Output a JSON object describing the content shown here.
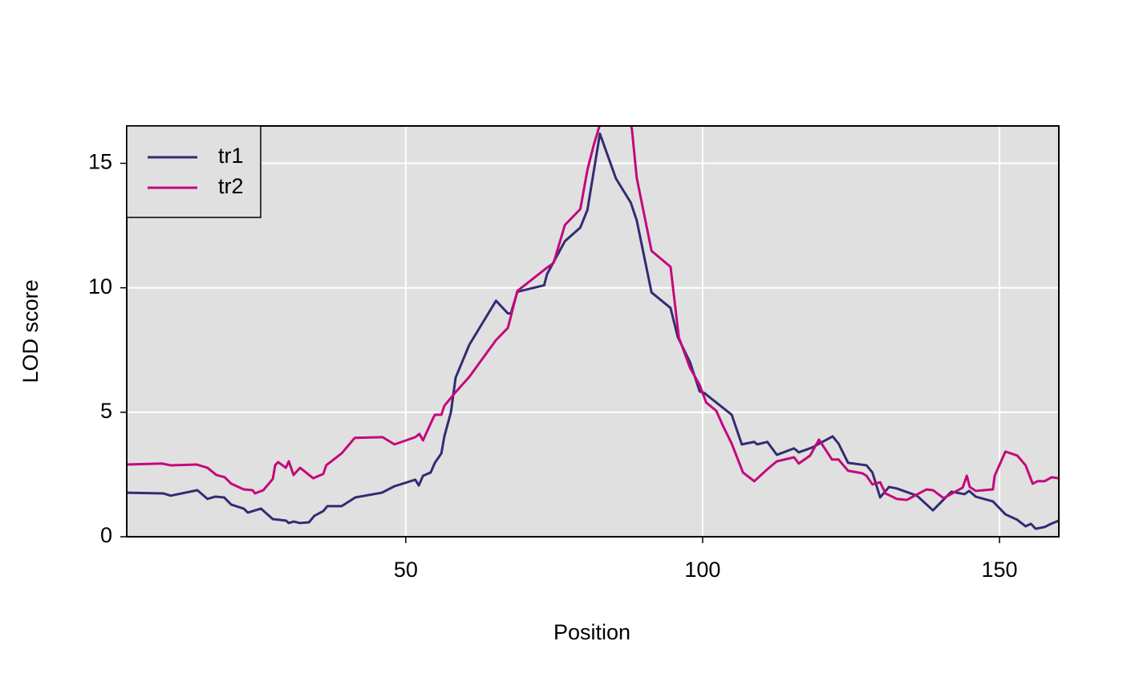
{
  "chart_data": {
    "type": "line",
    "x_label": "Position",
    "y_label": "LOD score",
    "xlim": [
      3,
      160
    ],
    "ylim": [
      0,
      16.5
    ],
    "xticks": [
      50,
      100,
      150
    ],
    "yticks": [
      0,
      5,
      10,
      15
    ],
    "grid": true,
    "legend": "top-left",
    "series": [
      {
        "name": "tr1",
        "color": "#322c73",
        "x": [
          3,
          9.2,
          10.4,
          14.9,
          16.6,
          17.9,
          19.4,
          20.6,
          22.7,
          23.4,
          25.6,
          27.6,
          29.8,
          30.3,
          31.1,
          32.2,
          33.7,
          34.6,
          36.1,
          36.8,
          39.2,
          41.5,
          46.0,
          48.1,
          51.6,
          52.2,
          52.9,
          54.2,
          54.9,
          56.0,
          56.5,
          57.6,
          58.4,
          60.7,
          65.2,
          67.2,
          67.7,
          68.8,
          73.3,
          73.8,
          76.8,
          79.4,
          80.6,
          82.7,
          85.4,
          87.9,
          88.9,
          91.4,
          94.6,
          95.8,
          97.9,
          99.5,
          100.3,
          104.9,
          106.6,
          108.7,
          109.2,
          110.9,
          112.5,
          115.4,
          116.2,
          118.4,
          121.9,
          122.9,
          124.5,
          127.6,
          128.6,
          129.9,
          131.4,
          132.7,
          136.1,
          138.8,
          141.9,
          144.1,
          144.9,
          146.0,
          148.9,
          151.0,
          153.0,
          154.4,
          155.3,
          156.1,
          157.6,
          158.7,
          160
        ],
        "values": [
          1.77,
          1.74,
          1.65,
          1.87,
          1.52,
          1.61,
          1.58,
          1.29,
          1.13,
          0.97,
          1.13,
          0.71,
          0.65,
          0.55,
          0.61,
          0.55,
          0.58,
          0.84,
          1.03,
          1.23,
          1.23,
          1.58,
          1.77,
          2.03,
          2.29,
          2.06,
          2.45,
          2.58,
          2.97,
          3.35,
          4.03,
          5.0,
          6.39,
          7.71,
          9.48,
          8.97,
          8.97,
          9.84,
          10.1,
          10.55,
          11.87,
          12.42,
          13.13,
          16.19,
          14.39,
          13.42,
          12.71,
          9.81,
          9.19,
          8.03,
          7.0,
          5.84,
          5.77,
          4.9,
          3.71,
          3.81,
          3.71,
          3.81,
          3.29,
          3.55,
          3.39,
          3.58,
          4.03,
          3.74,
          2.97,
          2.87,
          2.58,
          1.58,
          2.0,
          1.94,
          1.65,
          1.06,
          1.81,
          1.71,
          1.84,
          1.61,
          1.42,
          0.9,
          0.68,
          0.42,
          0.52,
          0.32,
          0.39,
          0.52,
          0.65
        ]
      },
      {
        "name": "tr2",
        "color": "#c4087c",
        "x": [
          3,
          8.9,
          10.4,
          14.8,
          16.6,
          18.1,
          19.5,
          20.6,
          22.7,
          24.2,
          24.6,
          26.0,
          27.6,
          28.0,
          28.5,
          29.8,
          30.3,
          31.1,
          32.2,
          34.4,
          36.1,
          36.6,
          39.2,
          41.4,
          46.1,
          48.1,
          51.6,
          52.3,
          52.9,
          54.5,
          54.9,
          56.0,
          56.5,
          58.4,
          60.7,
          65.2,
          67.2,
          68.8,
          73.8,
          74.9,
          76.8,
          79.4,
          80.6,
          81.6,
          83.5,
          87.5,
          88.1,
          88.9,
          91.4,
          94.6,
          96.0,
          97.9,
          99.5,
          100.6,
          102.3,
          103.5,
          104.9,
          106.8,
          108.7,
          110.9,
          112.5,
          115.4,
          116.2,
          118.1,
          119.6,
          121.8,
          122.9,
          124.5,
          126.9,
          127.6,
          128.6,
          129.9,
          130.8,
          132.7,
          134.4,
          137.7,
          138.8,
          140.6,
          143.8,
          144.5,
          145.0,
          146.0,
          148.9,
          149.2,
          151.0,
          153.0,
          154.4,
          155.6,
          156.4,
          157.6,
          158.8,
          160
        ],
        "values": [
          2.9,
          2.94,
          2.87,
          2.9,
          2.77,
          2.48,
          2.39,
          2.13,
          1.9,
          1.87,
          1.74,
          1.87,
          2.32,
          2.87,
          3.0,
          2.77,
          3.03,
          2.48,
          2.77,
          2.35,
          2.52,
          2.87,
          3.35,
          3.97,
          4.0,
          3.71,
          4.0,
          4.13,
          3.87,
          4.71,
          4.9,
          4.9,
          5.26,
          5.81,
          6.42,
          7.9,
          8.39,
          9.87,
          10.81,
          11.0,
          12.52,
          13.16,
          14.74,
          15.68,
          17.2,
          17.0,
          16.35,
          14.42,
          11.48,
          10.84,
          8.0,
          6.77,
          6.1,
          5.39,
          5.06,
          4.42,
          3.74,
          2.58,
          2.23,
          2.71,
          3.03,
          3.19,
          2.94,
          3.26,
          3.9,
          3.1,
          3.1,
          2.65,
          2.55,
          2.45,
          2.1,
          2.19,
          1.74,
          1.52,
          1.48,
          1.9,
          1.87,
          1.55,
          1.97,
          2.45,
          2.0,
          1.84,
          1.9,
          2.45,
          3.42,
          3.26,
          2.87,
          2.13,
          2.23,
          2.23,
          2.39,
          2.35
        ]
      }
    ]
  }
}
